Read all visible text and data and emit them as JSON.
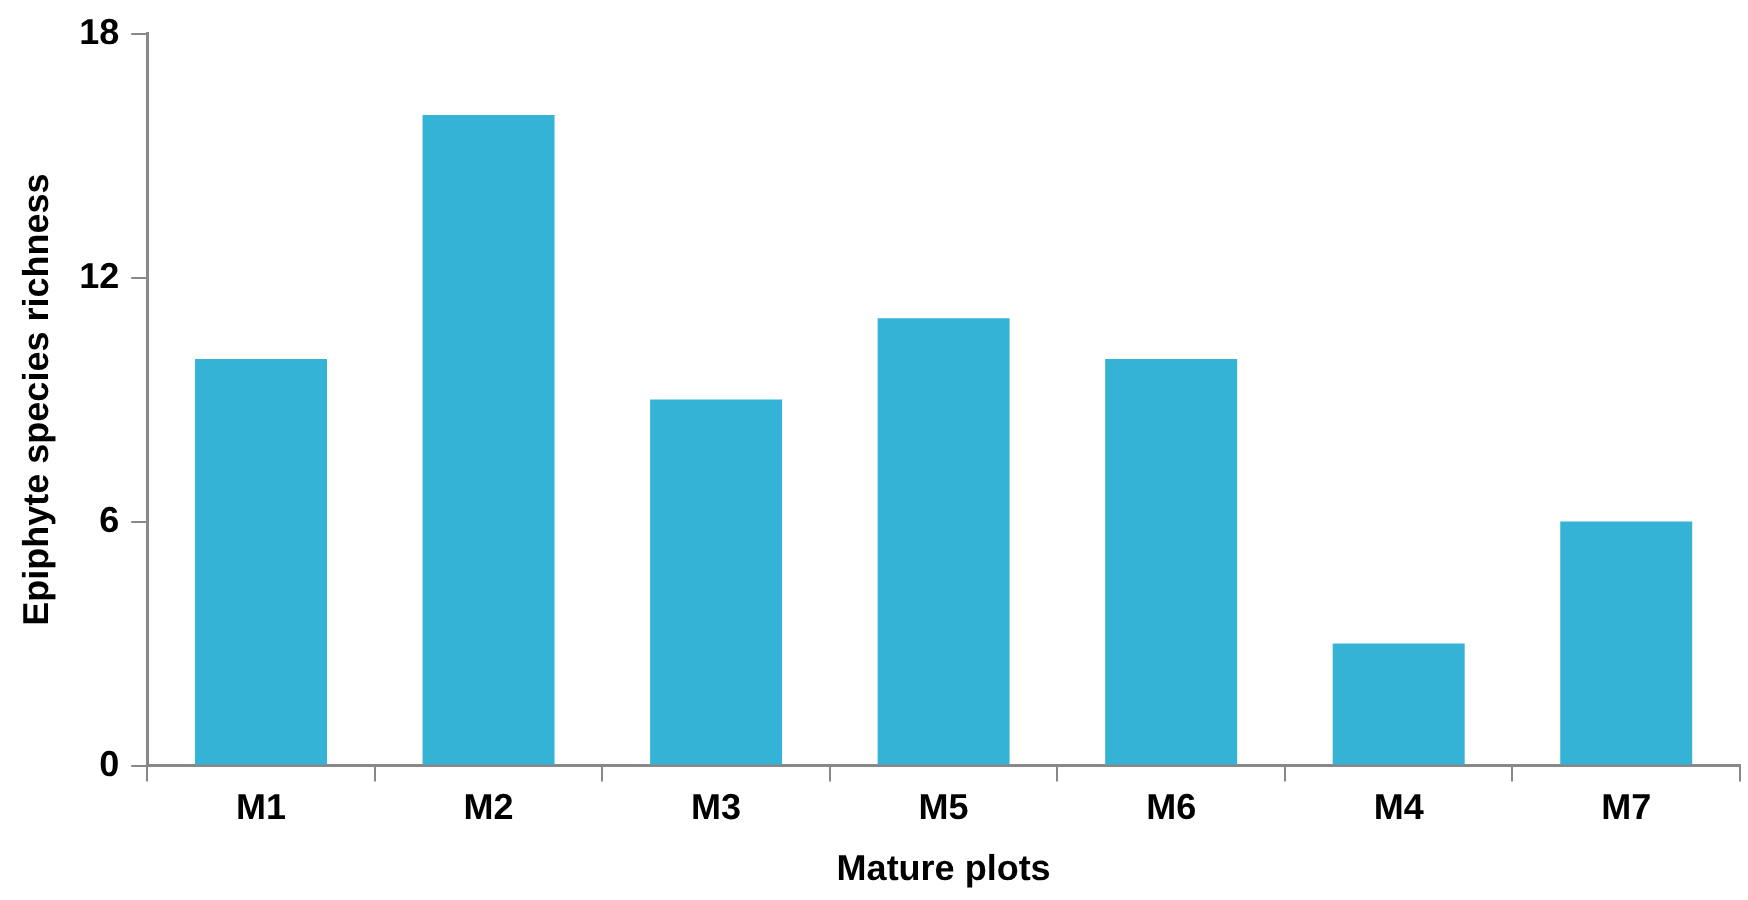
{
  "chart_data": {
    "type": "bar",
    "xlabel": "Mature plots",
    "ylabel": "Epiphyte species richness",
    "categories": [
      "M1",
      "M2",
      "M3",
      "M5",
      "M6",
      "M4",
      "M7"
    ],
    "values": [
      10,
      16,
      9,
      11,
      10,
      3,
      6
    ],
    "color": "#35b3d6",
    "ylim": [
      0,
      18
    ],
    "yticks": [
      0,
      6,
      12,
      18
    ],
    "grid": false,
    "legend": false
  }
}
